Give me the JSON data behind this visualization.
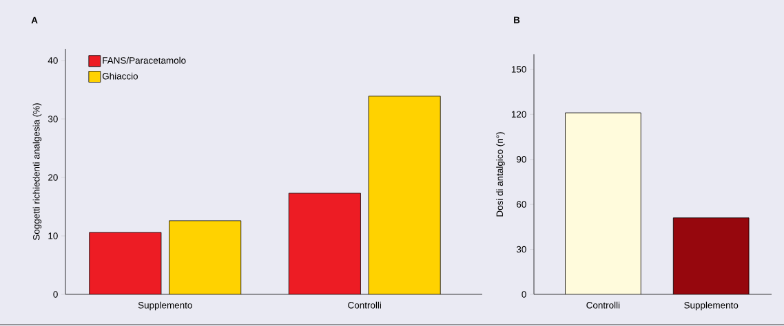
{
  "chart_data": [
    {
      "type": "bar",
      "title": "A",
      "ylabel": "Soggetti richiedenti analgesia (%)",
      "categories": [
        "Supplemento",
        "Controlli"
      ],
      "ylim": [
        0,
        42
      ],
      "yticks": [
        0,
        10,
        20,
        30,
        40
      ],
      "legend": "top left",
      "series": [
        {
          "name": "FANS/Paracetamolo",
          "color": "#ed1c24",
          "values": [
            10.6,
            17.3
          ]
        },
        {
          "name": "Ghiaccio",
          "color": "#ffd200",
          "values": [
            12.6,
            33.9
          ]
        }
      ]
    },
    {
      "type": "bar",
      "title": "B",
      "ylabel": "Dosi di antalgico (n°)",
      "categories": [
        "Controlli",
        "Supplemento"
      ],
      "ylim": [
        0,
        160
      ],
      "yticks": [
        0,
        30,
        60,
        90,
        120,
        150
      ],
      "series": [
        {
          "colors": [
            "#fffbdc",
            "#96070d"
          ],
          "values": [
            121,
            51
          ]
        }
      ]
    }
  ]
}
